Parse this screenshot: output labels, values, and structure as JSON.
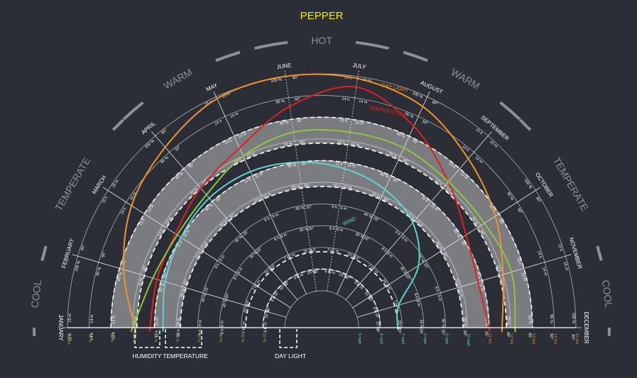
{
  "title": "PEPPER",
  "seasons": [
    {
      "label": "COOL",
      "start": 0,
      "end": 1
    },
    {
      "label": "TEMPERATE",
      "start": 1,
      "end": 3
    },
    {
      "label": "WARM",
      "start": 3,
      "end": 5
    },
    {
      "label": "HOT",
      "start": 5,
      "end": 7
    },
    {
      "label": "WARM",
      "start": 7,
      "end": 9
    },
    {
      "label": "TEMPERATE",
      "start": 9,
      "end": 11
    },
    {
      "label": "COOL",
      "start": 11,
      "end": 12
    }
  ],
  "months": [
    "JANUARY",
    "FEBRUARY",
    "MARCH",
    "APRIL",
    "MAY",
    "JUNE",
    "JULY",
    "AUGUST",
    "SEPTEMBER",
    "OCTOBER",
    "NOVEMBER",
    "DECEMBER"
  ],
  "legend": {
    "humidity": "HUMIDITY",
    "temperature": "TEMPERATURE",
    "daylight": "DAY LIGHT"
  },
  "colors": {
    "background": "#2b2e36",
    "title": "#f2e51c",
    "grid": "#e6e6e6",
    "season": "#8d9098",
    "band": "#bdbdbd",
    "daylight": "#f0932b",
    "temperature": "#e0201f",
    "humidity": "#8cc63f",
    "wind": "#5fd2d2"
  },
  "ring_labels": {
    "daylight_hours": [
      "5 h",
      "6 h",
      "7 h",
      "8 h",
      "9 h",
      "10 h",
      "11 h",
      "12 h",
      "13 h",
      "14 h",
      "15 h"
    ],
    "humidity_percent": [
      "10 %",
      "20 %",
      "30 %",
      "40 %",
      "50 %",
      "60 %",
      "70 %",
      "80 %",
      "90 %",
      "100 %"
    ],
    "wind_mph": [
      "5 m",
      "6 m",
      "7 m",
      "8 m",
      "9 m",
      "10 m",
      "11 m",
      "12 m",
      "13 m",
      "14 m",
      "15 m"
    ],
    "temperature_deg": [
      "5°",
      "10°",
      "15°",
      "20°",
      "25°",
      "30°",
      "35°",
      "40°",
      "45°",
      "50°",
      "60°"
    ],
    "baseline_right": [
      "5 mph",
      "6 mph",
      "7 mph",
      "8 mph",
      "9 mph",
      "10 mph",
      "11 mph",
      "12 mph",
      "13 mph",
      "14 mph",
      "15 mph"
    ],
    "baseline_left": [
      "100 %",
      "90 %",
      "80 %",
      "70 %",
      "60 %",
      "50 %",
      "40 %",
      "30 %",
      "20 %",
      "10 %"
    ],
    "baseline_hours": [
      "5 hrs",
      "6 hrs",
      "7 hrs",
      "8 hrs",
      "9 hrs",
      "10 hrs",
      "11 hrs",
      "12 hrs",
      "13 hrs",
      "14 hrs",
      "15 hrs"
    ]
  },
  "curve_labels": {
    "daylight": "DAY LIGHT",
    "temperature": "TEMPERATURE",
    "humidity": "HUMIDITY",
    "wind": "WIND"
  },
  "chart_data": {
    "type": "radial-line",
    "title": "PEPPER",
    "categories": [
      "JANUARY",
      "FEBRUARY",
      "MARCH",
      "APRIL",
      "MAY",
      "JUNE",
      "JULY",
      "AUGUST",
      "SEPTEMBER",
      "OCTOBER",
      "NOVEMBER",
      "DECEMBER"
    ],
    "optimal_bands": [
      {
        "name": "HUMIDITY",
        "rmin": 0.68,
        "rmax": 0.8
      },
      {
        "name": "TEMPERATURE",
        "rmin": 0.48,
        "rmax": 0.6
      },
      {
        "name": "DAY LIGHT",
        "rmin": 0.1,
        "rmax": 0.18
      }
    ],
    "series": [
      {
        "name": "DAY LIGHT",
        "values": [
          0.69,
          0.78,
          0.87,
          0.93,
          0.99,
          1.0,
          0.99,
          0.95,
          0.86,
          0.78,
          0.7,
          0.66
        ]
      },
      {
        "name": "TEMPERATURE",
        "values": [
          0.62,
          0.62,
          0.63,
          0.68,
          0.74,
          0.86,
          0.95,
          0.85,
          0.72,
          0.62,
          0.58,
          0.6
        ]
      },
      {
        "name": "HUMIDITY",
        "values": [
          0.7,
          0.64,
          0.62,
          0.64,
          0.7,
          0.74,
          0.74,
          0.74,
          0.72,
          0.72,
          0.74,
          0.72
        ]
      },
      {
        "name": "WIND",
        "values": [
          0.56,
          0.58,
          0.6,
          0.62,
          0.62,
          0.6,
          0.57,
          0.53,
          0.47,
          0.36,
          0.2,
          0.18
        ]
      }
    ]
  }
}
